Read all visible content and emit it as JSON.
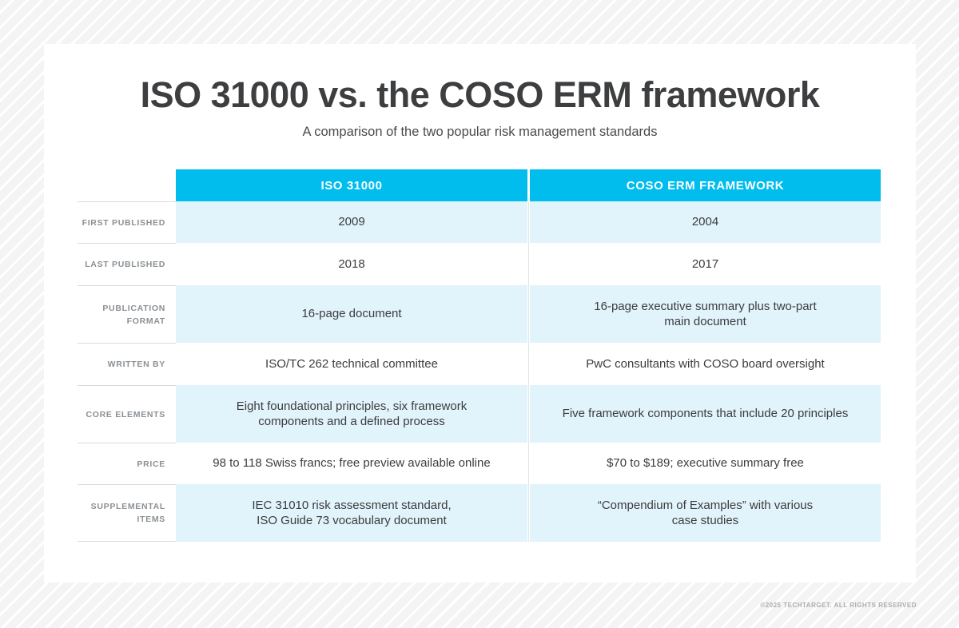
{
  "header": {
    "title": "ISO 31000 vs. the COSO ERM framework",
    "subtitle": "A comparison of the two popular risk management standards"
  },
  "table": {
    "columns": [
      "ISO 31000",
      "COSO ERM FRAMEWORK"
    ],
    "rows": [
      {
        "label": "FIRST PUBLISHED",
        "iso": "2009",
        "coso": "2004"
      },
      {
        "label": "LAST PUBLISHED",
        "iso": "2018",
        "coso": "2017"
      },
      {
        "label": "PUBLICATION\nFORMAT",
        "iso": "16-page document",
        "coso": "16-page executive summary plus two-part\nmain document"
      },
      {
        "label": "WRITTEN BY",
        "iso": "ISO/TC 262 technical committee",
        "coso": "PwC consultants with COSO board oversight"
      },
      {
        "label": "CORE ELEMENTS",
        "iso": "Eight foundational principles, six framework\ncomponents and a defined process",
        "coso": "Five framework components that include 20 principles"
      },
      {
        "label": "PRICE",
        "iso": "98 to 118 Swiss francs; free preview available online",
        "coso": "$70 to $189; executive summary free"
      },
      {
        "label": "SUPPLEMENTAL\nITEMS",
        "iso": "IEC 31010 risk assessment standard,\nISO Guide 73 vocabulary document",
        "coso": "“Compendium of Examples” with various\ncase studies"
      }
    ]
  },
  "footer": {
    "copyright": "©2025 TECHTARGET. ALL RIGHTS RESERVED"
  },
  "colors": {
    "header_bg": "#00bdee",
    "header_text": "#ffffff",
    "row_highlight_bg": "#e1f3fb",
    "row_plain_bg": "#ffffff",
    "title_text": "#3d3e40",
    "body_text": "#3c3c3e",
    "label_text": "#8b9094",
    "background_stripe": "#f4f4f4"
  }
}
